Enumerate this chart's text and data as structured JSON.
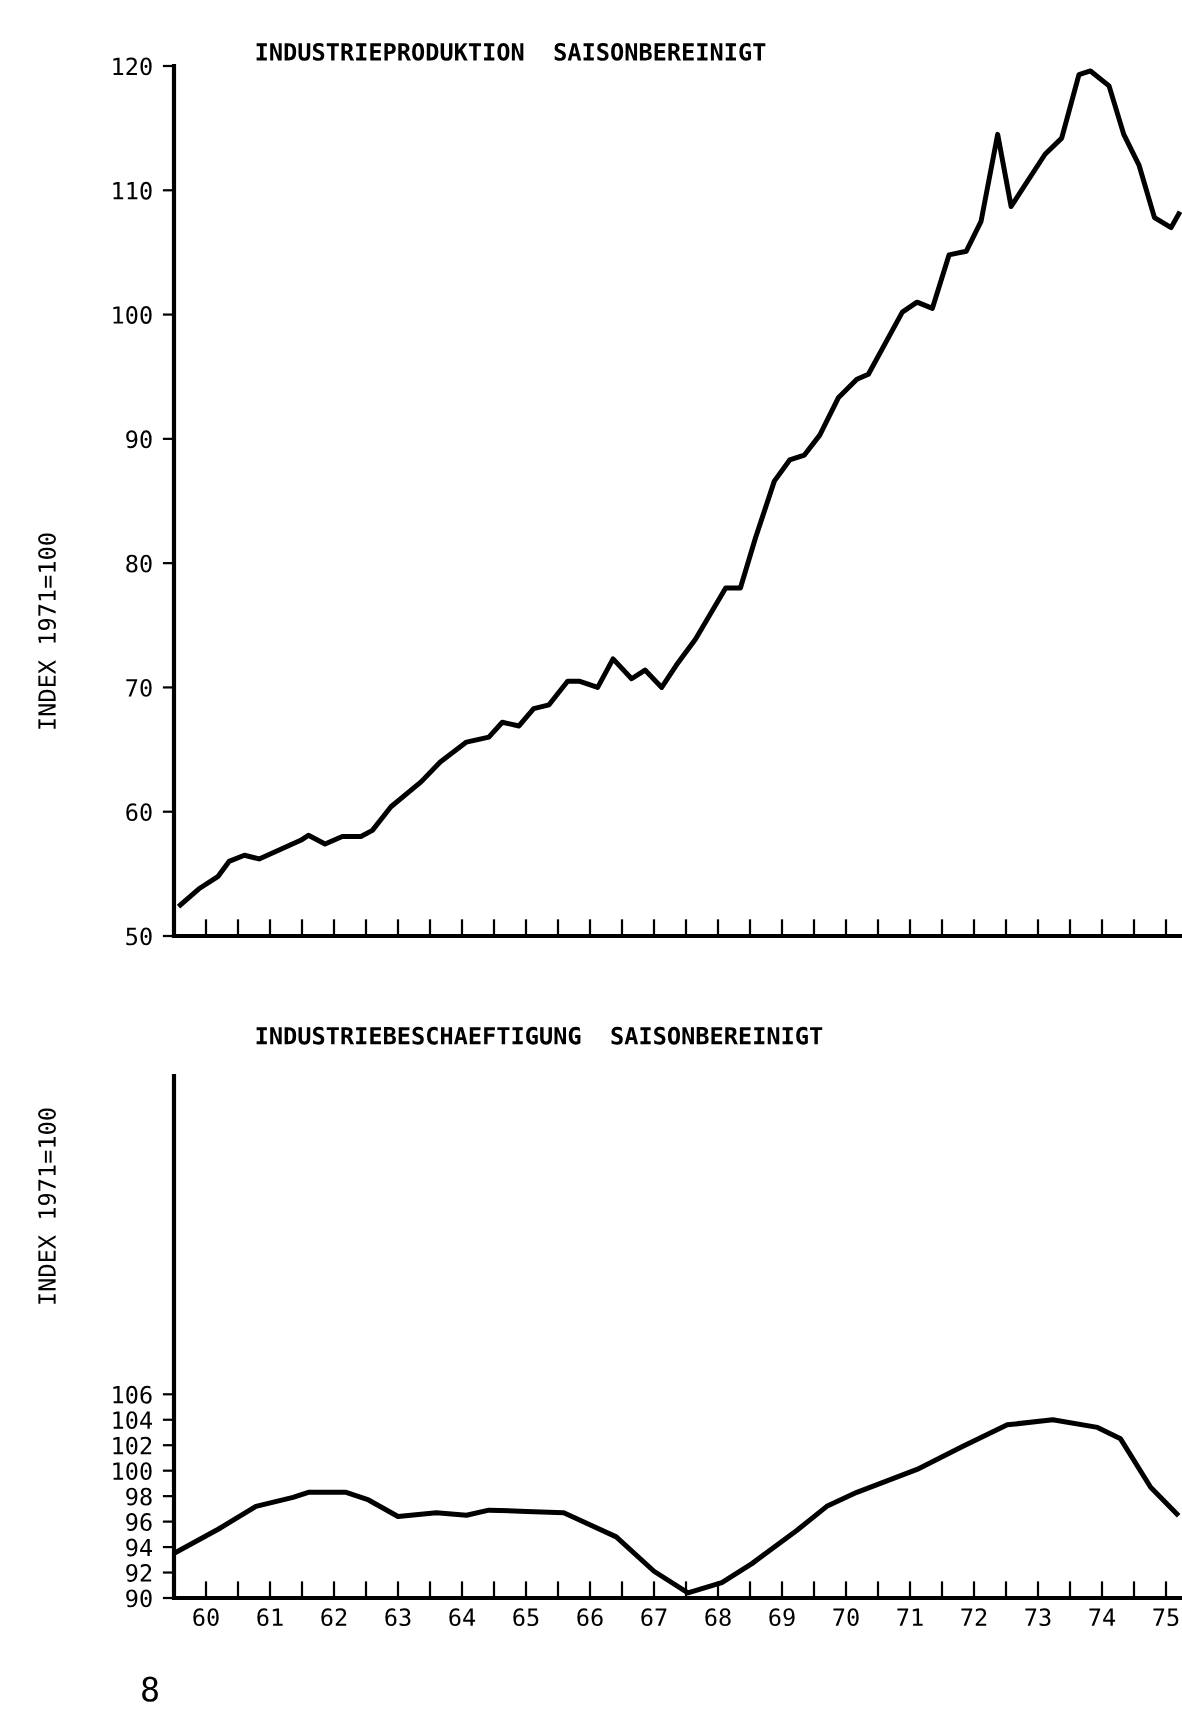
{
  "chart_data": [
    {
      "type": "line",
      "title": "INDUSTRIEPRODUKTION  SAISONBEREINIGT",
      "ylabel": "INDEX 1971=100",
      "xlim": [
        59.5,
        75.25
      ],
      "ylim": [
        50,
        120
      ],
      "yticks": [
        50,
        60,
        70,
        80,
        90,
        100,
        110,
        120
      ],
      "xticks": [
        {
          "value": 59.5,
          "label": null
        },
        60,
        {
          "value": 60.5,
          "label": null
        },
        61,
        {
          "value": 61.5,
          "label": null
        },
        62,
        {
          "value": 62.5,
          "label": null
        },
        63,
        {
          "value": 63.5,
          "label": null
        },
        64,
        {
          "value": 64.5,
          "label": null
        },
        65,
        {
          "value": 65.5,
          "label": null
        },
        66,
        {
          "value": 66.5,
          "label": null
        },
        67,
        {
          "value": 67.5,
          "label": null
        },
        68,
        {
          "value": 68.5,
          "label": null
        },
        69,
        {
          "value": 69.5,
          "label": null
        },
        70,
        {
          "value": 70.5,
          "label": null
        },
        71,
        {
          "value": 71.5,
          "label": null
        },
        72,
        {
          "value": 72.5,
          "label": null
        },
        73,
        {
          "value": 73.5,
          "label": null
        },
        74,
        {
          "value": 74.5,
          "label": null
        },
        75
      ],
      "tick_labels": "y",
      "grid": false,
      "legend": false,
      "series": [
        {
          "color": "#000000",
          "x": [
            59.6,
            59.89,
            60.19,
            60.36,
            60.6,
            60.83,
            61.48,
            61.6,
            61.86,
            62.13,
            62.42,
            62.6,
            62.89,
            63.36,
            63.66,
            64.07,
            64.42,
            64.63,
            64.89,
            65.12,
            65.36,
            65.65,
            65.83,
            66.12,
            66.36,
            66.65,
            66.86,
            67.12,
            67.35,
            67.65,
            68.12,
            68.35,
            68.59,
            68.88,
            69.12,
            69.35,
            69.59,
            69.88,
            70.17,
            70.35,
            70.88,
            71.11,
            71.35,
            71.61,
            71.88,
            72.11,
            72.37,
            72.58,
            73.11,
            73.37,
            73.64,
            73.82,
            74.11,
            74.34,
            74.58,
            74.82,
            75.08,
            75.2
          ],
          "values": [
            52.5,
            53.8,
            54.8,
            56.0,
            56.5,
            56.2,
            57.7,
            58.1,
            57.4,
            58.0,
            58.0,
            58.5,
            60.4,
            62.4,
            64.0,
            65.6,
            66.0,
            67.2,
            66.9,
            68.3,
            68.6,
            70.5,
            70.5,
            70.0,
            72.3,
            70.7,
            71.4,
            70.0,
            71.8,
            73.9,
            78.0,
            78.0,
            82.1,
            86.6,
            88.3,
            88.7,
            90.3,
            93.3,
            94.8,
            95.2,
            100.2,
            101.0,
            100.5,
            104.8,
            105.1,
            107.5,
            114.5,
            108.7,
            112.9,
            114.2,
            119.3,
            119.6,
            118.4,
            114.5,
            112.0,
            107.8,
            107.0,
            108.1
          ]
        }
      ]
    },
    {
      "type": "line",
      "title": "INDUSTRIEBESCHAEFTIGUNG  SAISONBEREINIGT",
      "ylabel": "INDEX 1971=100",
      "xlim": [
        59.5,
        75.25
      ],
      "ylim": [
        90,
        131
      ],
      "yticks": [
        90,
        92,
        94,
        96,
        98,
        100,
        102,
        104,
        106
      ],
      "xticks": [
        {
          "value": 59.5,
          "label": null
        },
        60,
        {
          "value": 60.5,
          "label": null
        },
        61,
        {
          "value": 61.5,
          "label": null
        },
        62,
        {
          "value": 62.5,
          "label": null
        },
        63,
        {
          "value": 63.5,
          "label": null
        },
        64,
        {
          "value": 64.5,
          "label": null
        },
        65,
        {
          "value": 65.5,
          "label": null
        },
        66,
        {
          "value": 66.5,
          "label": null
        },
        67,
        {
          "value": 67.5,
          "label": null
        },
        68,
        {
          "value": 68.5,
          "label": null
        },
        69,
        {
          "value": 69.5,
          "label": null
        },
        70,
        {
          "value": 70.5,
          "label": null
        },
        71,
        {
          "value": 71.5,
          "label": null
        },
        72,
        {
          "value": 72.5,
          "label": null
        },
        73,
        {
          "value": 73.5,
          "label": null
        },
        74,
        {
          "value": 74.5,
          "label": null
        },
        75
      ],
      "grid": false,
      "legend": false,
      "annotations": [
        "8"
      ],
      "series": [
        {
          "color": "#000000",
          "x": [
            59.5,
            60.19,
            60.78,
            61.36,
            61.6,
            62.19,
            62.54,
            63.0,
            63.6,
            64.07,
            64.42,
            65.01,
            65.59,
            66.41,
            67.0,
            67.53,
            68.06,
            68.53,
            69.23,
            69.7,
            70.17,
            71.11,
            71.82,
            72.52,
            73.23,
            73.93,
            74.29,
            74.76,
            75.17
          ],
          "values": [
            93.5,
            95.4,
            97.2,
            97.9,
            98.3,
            98.3,
            97.7,
            96.4,
            96.7,
            96.5,
            96.9,
            96.8,
            96.7,
            94.8,
            92.1,
            90.4,
            91.2,
            92.7,
            95.3,
            97.2,
            98.3,
            100.1,
            101.9,
            103.6,
            104.0,
            103.4,
            102.5,
            98.7,
            96.6
          ]
        }
      ]
    }
  ]
}
